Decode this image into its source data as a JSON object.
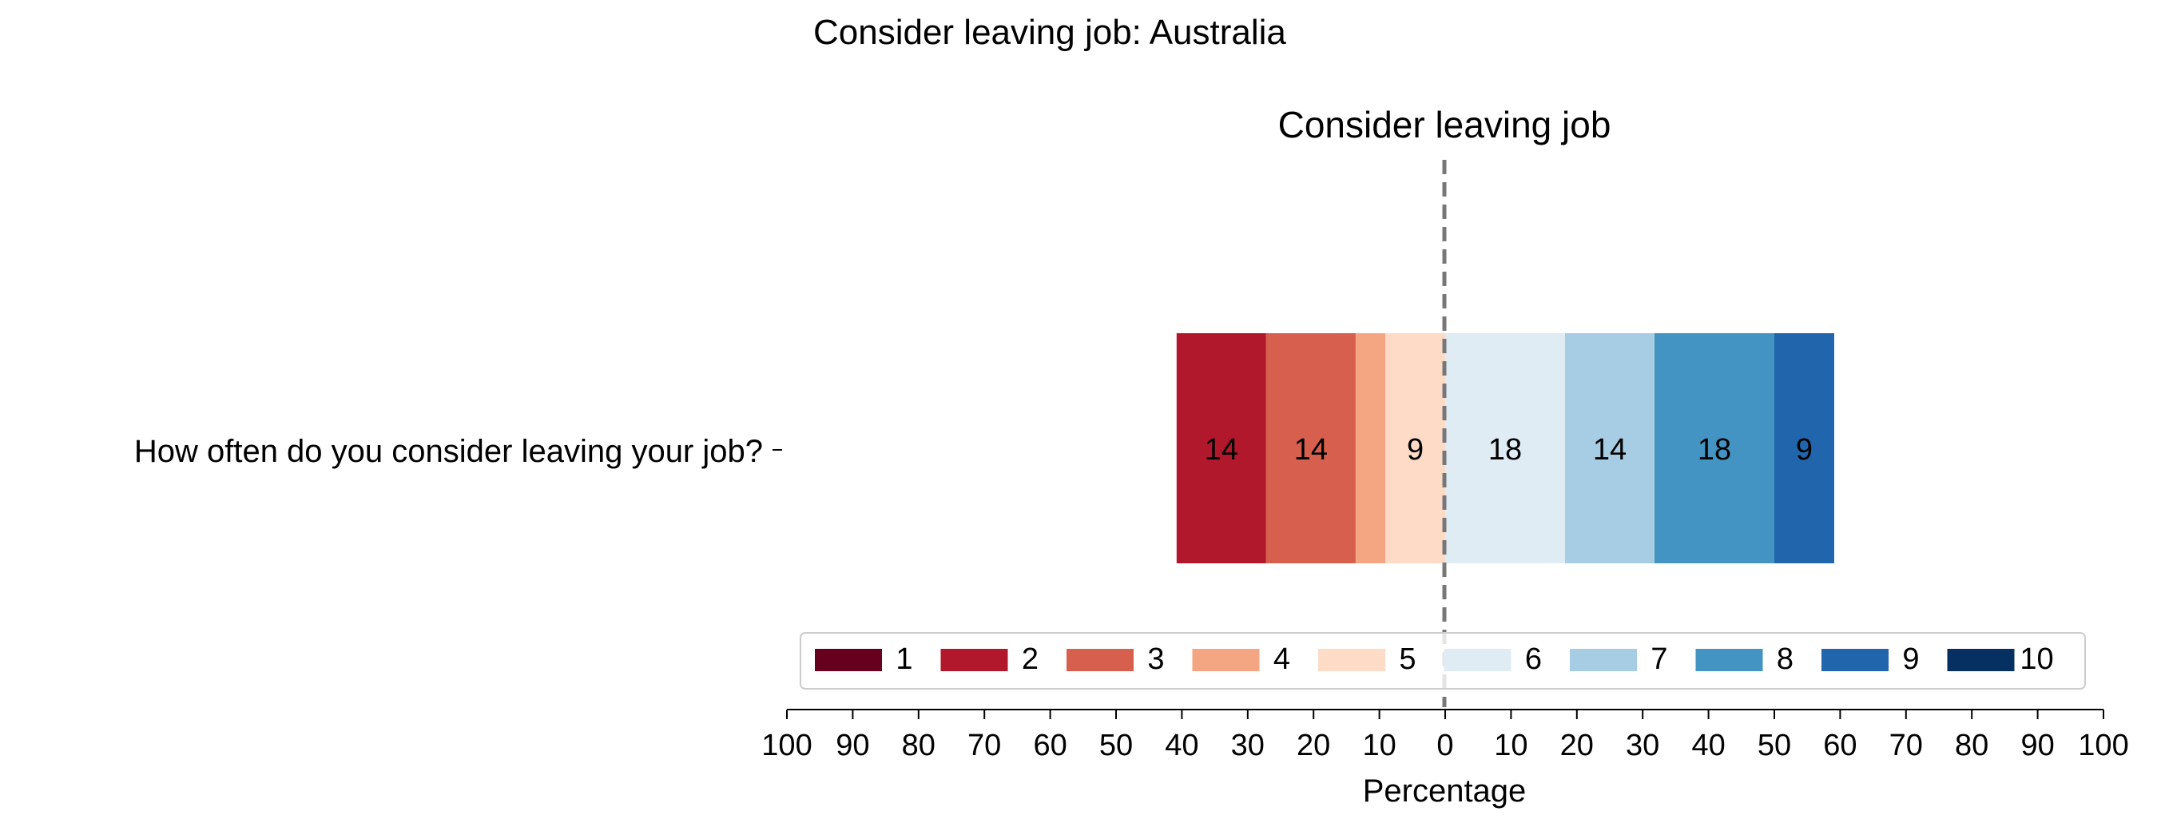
{
  "chart_data": {
    "type": "bar",
    "orientation": "horizontal-diverging",
    "title": "Consider leaving job: Australia",
    "subtitle": "Consider leaving job",
    "xlabel": "Percentage",
    "ylabel": "",
    "categories": [
      "How often do you consider leaving your job?"
    ],
    "xlim": [
      -100,
      100
    ],
    "center_line": 0,
    "x_ticks": [
      -100,
      -90,
      -80,
      -70,
      -60,
      -50,
      -40,
      -30,
      -20,
      -10,
      0,
      10,
      20,
      30,
      40,
      50,
      60,
      70,
      80,
      90,
      100
    ],
    "x_tick_labels": [
      "100",
      "90",
      "80",
      "70",
      "60",
      "50",
      "40",
      "30",
      "20",
      "10",
      "0",
      "10",
      "20",
      "30",
      "40",
      "50",
      "60",
      "70",
      "80",
      "90",
      "100"
    ],
    "series": [
      {
        "name": "1",
        "color": "#67001f",
        "values": [
          0
        ],
        "label": ""
      },
      {
        "name": "2",
        "color": "#b2182b",
        "values": [
          13.6
        ],
        "label": "14"
      },
      {
        "name": "3",
        "color": "#d6604d",
        "values": [
          13.6
        ],
        "label": "14"
      },
      {
        "name": "4",
        "color": "#f4a582",
        "values": [
          4.5
        ],
        "label": ""
      },
      {
        "name": "5",
        "color": "#fddbc7",
        "values": [
          9.1
        ],
        "label": "9"
      },
      {
        "name": "6",
        "color": "#e0ecf4",
        "values": [
          18.2
        ],
        "label": "18"
      },
      {
        "name": "7",
        "color": "#a6cde3",
        "values": [
          13.6
        ],
        "label": "14"
      },
      {
        "name": "8",
        "color": "#4393c3",
        "values": [
          18.2
        ],
        "label": "18"
      },
      {
        "name": "9",
        "color": "#2166ac",
        "values": [
          9.1
        ],
        "label": "9"
      },
      {
        "name": "10",
        "color": "#053061",
        "values": [
          0
        ],
        "label": ""
      }
    ],
    "negative_series": [
      "1",
      "2",
      "3",
      "4",
      "5"
    ],
    "legend": {
      "placement": "bottom-center",
      "columns": 10
    },
    "grid": false
  }
}
